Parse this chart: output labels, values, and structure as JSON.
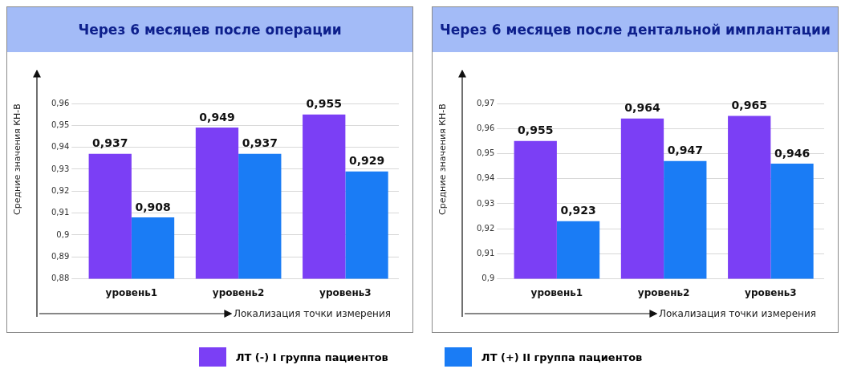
{
  "chart_data": [
    {
      "type": "bar",
      "title": "Через 6 месяцев после операции",
      "xlabel": "Локализация точки измерения",
      "ylabel": "Средние значения КН-В",
      "categories": [
        "уровень1",
        "уровень2",
        "уровень3"
      ],
      "series": [
        {
          "name": "ЛТ (-) I группа пациентов",
          "color": "#7b3ff5",
          "values": [
            0.937,
            0.949,
            0.955
          ],
          "value_labels": [
            "0,937",
            "0,949",
            "0,955"
          ]
        },
        {
          "name": "ЛТ (+) II группа пациентов",
          "color": "#1a7cf5",
          "values": [
            0.908,
            0.937,
            0.929
          ],
          "value_labels": [
            "0,908",
            "0,937",
            "0,929"
          ]
        }
      ],
      "ylim": [
        0.88,
        0.96
      ],
      "yticks": [
        {
          "value": 0.88,
          "label": "0,88"
        },
        {
          "value": 0.89,
          "label": "0,89"
        },
        {
          "value": 0.9,
          "label": "0,9"
        },
        {
          "value": 0.91,
          "label": "0,91"
        },
        {
          "value": 0.92,
          "label": "0,92"
        },
        {
          "value": 0.93,
          "label": "0,93"
        },
        {
          "value": 0.94,
          "label": "0,94"
        },
        {
          "value": 0.95,
          "label": "0,95"
        },
        {
          "value": 0.96,
          "label": "0,96"
        }
      ],
      "grid": "y",
      "legend": "bottom"
    },
    {
      "type": "bar",
      "title": "Через 6 месяцев после дентальной имплантации",
      "xlabel": "Локализация точки измерения",
      "ylabel": "Средние значения КН-В",
      "categories": [
        "уровень1",
        "уровень2",
        "уровень3"
      ],
      "series": [
        {
          "color": "#7b3ff5",
          "values": [
            0.955,
            0.964,
            0.965
          ],
          "value_labels": [
            "0,955",
            "0,964",
            "0,965"
          ]
        },
        {
          "color": "#1a7cf5",
          "values": [
            0.923,
            0.947,
            0.946
          ],
          "value_labels": [
            "0,923",
            "0,947",
            "0,946"
          ]
        }
      ],
      "ylim": [
        0.9,
        0.97
      ],
      "yticks": [
        {
          "value": 0.9,
          "label": "0,9"
        },
        {
          "value": 0.91,
          "label": "0,91"
        },
        {
          "value": 0.92,
          "label": "0,92"
        },
        {
          "value": 0.93,
          "label": "0,93"
        },
        {
          "value": 0.94,
          "label": "0,94"
        },
        {
          "value": 0.95,
          "label": "0,95"
        },
        {
          "value": 0.96,
          "label": "0,96"
        },
        {
          "value": 0.97,
          "label": "0,97"
        }
      ],
      "grid": "y"
    }
  ]
}
